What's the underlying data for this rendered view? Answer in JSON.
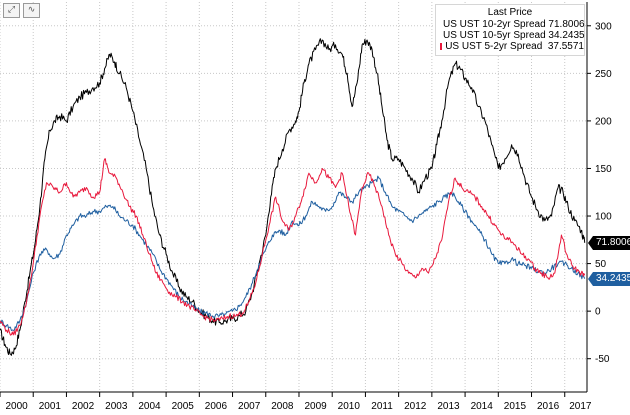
{
  "toolbar": {
    "expand_icon": "expand-icon",
    "expand_glyph": "⤢",
    "chart_icon": "line-chart-icon",
    "chart_glyph": "∿"
  },
  "legend": {
    "title": "Last Price",
    "items": [
      {
        "label": "US UST 10-2yr Spread",
        "value": "71.8006",
        "color": "#000000"
      },
      {
        "label": "US UST 10-5yr Spread",
        "value": "34.2435",
        "color": "#1f5fa0"
      },
      {
        "label": "US UST 5-2yr Spread",
        "value": "37.5571",
        "color": "#e8193c"
      }
    ]
  },
  "last_tags": [
    {
      "value": "71.8006",
      "color": "#000000",
      "series": 0
    },
    {
      "value": "34.2435",
      "color": "#1f5fa0",
      "series": 1
    }
  ],
  "chart_data": {
    "type": "line",
    "xlim": [
      2000.0,
      2017.67
    ],
    "ylim": [
      -85,
      325
    ],
    "x_tick_labels": [
      "2000",
      "2001",
      "2002",
      "2003",
      "2004",
      "2005",
      "2006",
      "2007",
      "2008",
      "2009",
      "2010",
      "2011",
      "2012",
      "2013",
      "2014",
      "2015",
      "2016",
      "2017"
    ],
    "y_ticks": [
      -50,
      0,
      50,
      100,
      150,
      200,
      250,
      300
    ],
    "y_axis_side": "right",
    "grid": true,
    "legend_position": "top-right",
    "series": [
      {
        "name": "US UST 10-2yr Spread",
        "color": "#000000",
        "points": [
          [
            2000.0,
            -20
          ],
          [
            2000.15,
            -35
          ],
          [
            2000.3,
            -45
          ],
          [
            2000.45,
            -40
          ],
          [
            2000.6,
            -20
          ],
          [
            2000.75,
            10
          ],
          [
            2000.9,
            40
          ],
          [
            2001.05,
            70
          ],
          [
            2001.2,
            110
          ],
          [
            2001.35,
            160
          ],
          [
            2001.5,
            190
          ],
          [
            2001.65,
            200
          ],
          [
            2001.8,
            205
          ],
          [
            2002.0,
            200
          ],
          [
            2002.2,
            215
          ],
          [
            2002.4,
            225
          ],
          [
            2002.6,
            230
          ],
          [
            2002.8,
            235
          ],
          [
            2003.0,
            240
          ],
          [
            2003.15,
            255
          ],
          [
            2003.3,
            270
          ],
          [
            2003.45,
            262
          ],
          [
            2003.6,
            250
          ],
          [
            2003.8,
            235
          ],
          [
            2004.0,
            210
          ],
          [
            2004.2,
            180
          ],
          [
            2004.4,
            150
          ],
          [
            2004.6,
            110
          ],
          [
            2004.8,
            80
          ],
          [
            2005.0,
            60
          ],
          [
            2005.2,
            40
          ],
          [
            2005.4,
            25
          ],
          [
            2005.6,
            15
          ],
          [
            2005.8,
            10
          ],
          [
            2006.0,
            0
          ],
          [
            2006.2,
            -5
          ],
          [
            2006.4,
            -10
          ],
          [
            2006.6,
            -12
          ],
          [
            2006.8,
            -10
          ],
          [
            2007.0,
            -8
          ],
          [
            2007.2,
            -5
          ],
          [
            2007.4,
            0
          ],
          [
            2007.6,
            20
          ],
          [
            2007.8,
            50
          ],
          [
            2008.0,
            80
          ],
          [
            2008.15,
            120
          ],
          [
            2008.3,
            150
          ],
          [
            2008.5,
            170
          ],
          [
            2008.7,
            190
          ],
          [
            2008.9,
            200
          ],
          [
            2009.0,
            210
          ],
          [
            2009.15,
            240
          ],
          [
            2009.3,
            260
          ],
          [
            2009.5,
            275
          ],
          [
            2009.7,
            285
          ],
          [
            2009.9,
            275
          ],
          [
            2010.1,
            280
          ],
          [
            2010.3,
            270
          ],
          [
            2010.45,
            250
          ],
          [
            2010.6,
            215
          ],
          [
            2010.75,
            240
          ],
          [
            2010.9,
            280
          ],
          [
            2011.05,
            285
          ],
          [
            2011.2,
            275
          ],
          [
            2011.35,
            250
          ],
          [
            2011.5,
            215
          ],
          [
            2011.65,
            180
          ],
          [
            2011.8,
            160
          ],
          [
            2012.0,
            160
          ],
          [
            2012.2,
            150
          ],
          [
            2012.4,
            140
          ],
          [
            2012.6,
            125
          ],
          [
            2012.8,
            140
          ],
          [
            2013.0,
            150
          ],
          [
            2013.15,
            175
          ],
          [
            2013.3,
            200
          ],
          [
            2013.5,
            240
          ],
          [
            2013.7,
            260
          ],
          [
            2013.85,
            255
          ],
          [
            2014.0,
            245
          ],
          [
            2014.2,
            235
          ],
          [
            2014.4,
            215
          ],
          [
            2014.6,
            200
          ],
          [
            2014.8,
            175
          ],
          [
            2015.0,
            150
          ],
          [
            2015.2,
            160
          ],
          [
            2015.4,
            175
          ],
          [
            2015.6,
            165
          ],
          [
            2015.8,
            140
          ],
          [
            2016.0,
            120
          ],
          [
            2016.2,
            105
          ],
          [
            2016.4,
            95
          ],
          [
            2016.6,
            100
          ],
          [
            2016.8,
            130
          ],
          [
            2016.95,
            125
          ],
          [
            2017.1,
            110
          ],
          [
            2017.3,
            95
          ],
          [
            2017.5,
            85
          ],
          [
            2017.6,
            71.8
          ]
        ]
      },
      {
        "name": "US UST 10-5yr Spread",
        "color": "#1f5fa0",
        "points": [
          [
            2000.0,
            -10
          ],
          [
            2000.2,
            -15
          ],
          [
            2000.4,
            -20
          ],
          [
            2000.6,
            -10
          ],
          [
            2000.8,
            10
          ],
          [
            2001.0,
            40
          ],
          [
            2001.2,
            60
          ],
          [
            2001.4,
            65
          ],
          [
            2001.6,
            55
          ],
          [
            2001.8,
            60
          ],
          [
            2002.0,
            80
          ],
          [
            2002.2,
            90
          ],
          [
            2002.4,
            100
          ],
          [
            2002.6,
            100
          ],
          [
            2002.8,
            105
          ],
          [
            2003.0,
            105
          ],
          [
            2003.2,
            110
          ],
          [
            2003.4,
            110
          ],
          [
            2003.6,
            100
          ],
          [
            2003.8,
            95
          ],
          [
            2004.0,
            90
          ],
          [
            2004.2,
            80
          ],
          [
            2004.4,
            70
          ],
          [
            2004.6,
            60
          ],
          [
            2004.8,
            45
          ],
          [
            2005.0,
            35
          ],
          [
            2005.2,
            25
          ],
          [
            2005.4,
            15
          ],
          [
            2005.6,
            10
          ],
          [
            2005.8,
            5
          ],
          [
            2006.0,
            0
          ],
          [
            2006.2,
            -2
          ],
          [
            2006.4,
            -5
          ],
          [
            2006.6,
            -5
          ],
          [
            2006.8,
            -3
          ],
          [
            2007.0,
            0
          ],
          [
            2007.2,
            5
          ],
          [
            2007.4,
            15
          ],
          [
            2007.6,
            30
          ],
          [
            2007.8,
            50
          ],
          [
            2008.0,
            65
          ],
          [
            2008.2,
            80
          ],
          [
            2008.4,
            85
          ],
          [
            2008.6,
            80
          ],
          [
            2008.8,
            95
          ],
          [
            2009.0,
            90
          ],
          [
            2009.2,
            100
          ],
          [
            2009.4,
            115
          ],
          [
            2009.6,
            110
          ],
          [
            2009.8,
            105
          ],
          [
            2010.0,
            110
          ],
          [
            2010.2,
            125
          ],
          [
            2010.4,
            120
          ],
          [
            2010.6,
            115
          ],
          [
            2010.8,
            125
          ],
          [
            2011.0,
            130
          ],
          [
            2011.2,
            135
          ],
          [
            2011.4,
            140
          ],
          [
            2011.6,
            125
          ],
          [
            2011.8,
            110
          ],
          [
            2012.0,
            105
          ],
          [
            2012.2,
            100
          ],
          [
            2012.4,
            95
          ],
          [
            2012.6,
            100
          ],
          [
            2012.8,
            105
          ],
          [
            2013.0,
            110
          ],
          [
            2013.2,
            115
          ],
          [
            2013.4,
            120
          ],
          [
            2013.6,
            125
          ],
          [
            2013.8,
            115
          ],
          [
            2014.0,
            105
          ],
          [
            2014.2,
            95
          ],
          [
            2014.4,
            85
          ],
          [
            2014.6,
            75
          ],
          [
            2014.8,
            60
          ],
          [
            2015.0,
            50
          ],
          [
            2015.2,
            50
          ],
          [
            2015.4,
            55
          ],
          [
            2015.6,
            50
          ],
          [
            2015.8,
            48
          ],
          [
            2016.0,
            45
          ],
          [
            2016.2,
            42
          ],
          [
            2016.4,
            40
          ],
          [
            2016.6,
            45
          ],
          [
            2016.8,
            50
          ],
          [
            2017.0,
            50
          ],
          [
            2017.2,
            45
          ],
          [
            2017.4,
            40
          ],
          [
            2017.6,
            34.2
          ]
        ]
      },
      {
        "name": "US UST 5-2yr Spread",
        "color": "#e8193c",
        "points": [
          [
            2000.0,
            -10
          ],
          [
            2000.2,
            -20
          ],
          [
            2000.4,
            -25
          ],
          [
            2000.6,
            -15
          ],
          [
            2000.8,
            10
          ],
          [
            2001.0,
            50
          ],
          [
            2001.2,
            100
          ],
          [
            2001.4,
            135
          ],
          [
            2001.6,
            130
          ],
          [
            2001.8,
            125
          ],
          [
            2002.0,
            135
          ],
          [
            2002.2,
            120
          ],
          [
            2002.4,
            125
          ],
          [
            2002.6,
            130
          ],
          [
            2002.8,
            120
          ],
          [
            2003.0,
            125
          ],
          [
            2003.15,
            160
          ],
          [
            2003.3,
            145
          ],
          [
            2003.5,
            140
          ],
          [
            2003.7,
            125
          ],
          [
            2003.9,
            110
          ],
          [
            2004.1,
            100
          ],
          [
            2004.3,
            80
          ],
          [
            2004.5,
            60
          ],
          [
            2004.7,
            40
          ],
          [
            2004.9,
            30
          ],
          [
            2005.1,
            20
          ],
          [
            2005.3,
            15
          ],
          [
            2005.5,
            10
          ],
          [
            2005.7,
            5
          ],
          [
            2005.9,
            0
          ],
          [
            2006.1,
            -5
          ],
          [
            2006.3,
            -8
          ],
          [
            2006.5,
            -10
          ],
          [
            2006.7,
            -8
          ],
          [
            2006.9,
            -5
          ],
          [
            2007.1,
            -5
          ],
          [
            2007.3,
            -2
          ],
          [
            2007.5,
            10
          ],
          [
            2007.7,
            30
          ],
          [
            2007.9,
            60
          ],
          [
            2008.1,
            90
          ],
          [
            2008.3,
            120
          ],
          [
            2008.5,
            95
          ],
          [
            2008.7,
            85
          ],
          [
            2008.9,
            100
          ],
          [
            2009.1,
            120
          ],
          [
            2009.3,
            145
          ],
          [
            2009.5,
            135
          ],
          [
            2009.7,
            150
          ],
          [
            2009.9,
            140
          ],
          [
            2010.1,
            130
          ],
          [
            2010.3,
            145
          ],
          [
            2010.5,
            110
          ],
          [
            2010.7,
            80
          ],
          [
            2010.9,
            130
          ],
          [
            2011.1,
            145
          ],
          [
            2011.3,
            130
          ],
          [
            2011.5,
            110
          ],
          [
            2011.7,
            80
          ],
          [
            2011.9,
            60
          ],
          [
            2012.1,
            50
          ],
          [
            2012.3,
            40
          ],
          [
            2012.5,
            35
          ],
          [
            2012.7,
            45
          ],
          [
            2012.9,
            40
          ],
          [
            2013.1,
            55
          ],
          [
            2013.3,
            75
          ],
          [
            2013.5,
            115
          ],
          [
            2013.7,
            140
          ],
          [
            2013.9,
            130
          ],
          [
            2014.1,
            125
          ],
          [
            2014.3,
            120
          ],
          [
            2014.5,
            110
          ],
          [
            2014.7,
            100
          ],
          [
            2014.9,
            90
          ],
          [
            2015.1,
            80
          ],
          [
            2015.3,
            75
          ],
          [
            2015.5,
            70
          ],
          [
            2015.7,
            60
          ],
          [
            2015.9,
            55
          ],
          [
            2016.1,
            45
          ],
          [
            2016.3,
            40
          ],
          [
            2016.5,
            35
          ],
          [
            2016.7,
            40
          ],
          [
            2016.9,
            80
          ],
          [
            2017.1,
            55
          ],
          [
            2017.3,
            45
          ],
          [
            2017.5,
            40
          ],
          [
            2017.6,
            37.6
          ]
        ]
      }
    ]
  }
}
